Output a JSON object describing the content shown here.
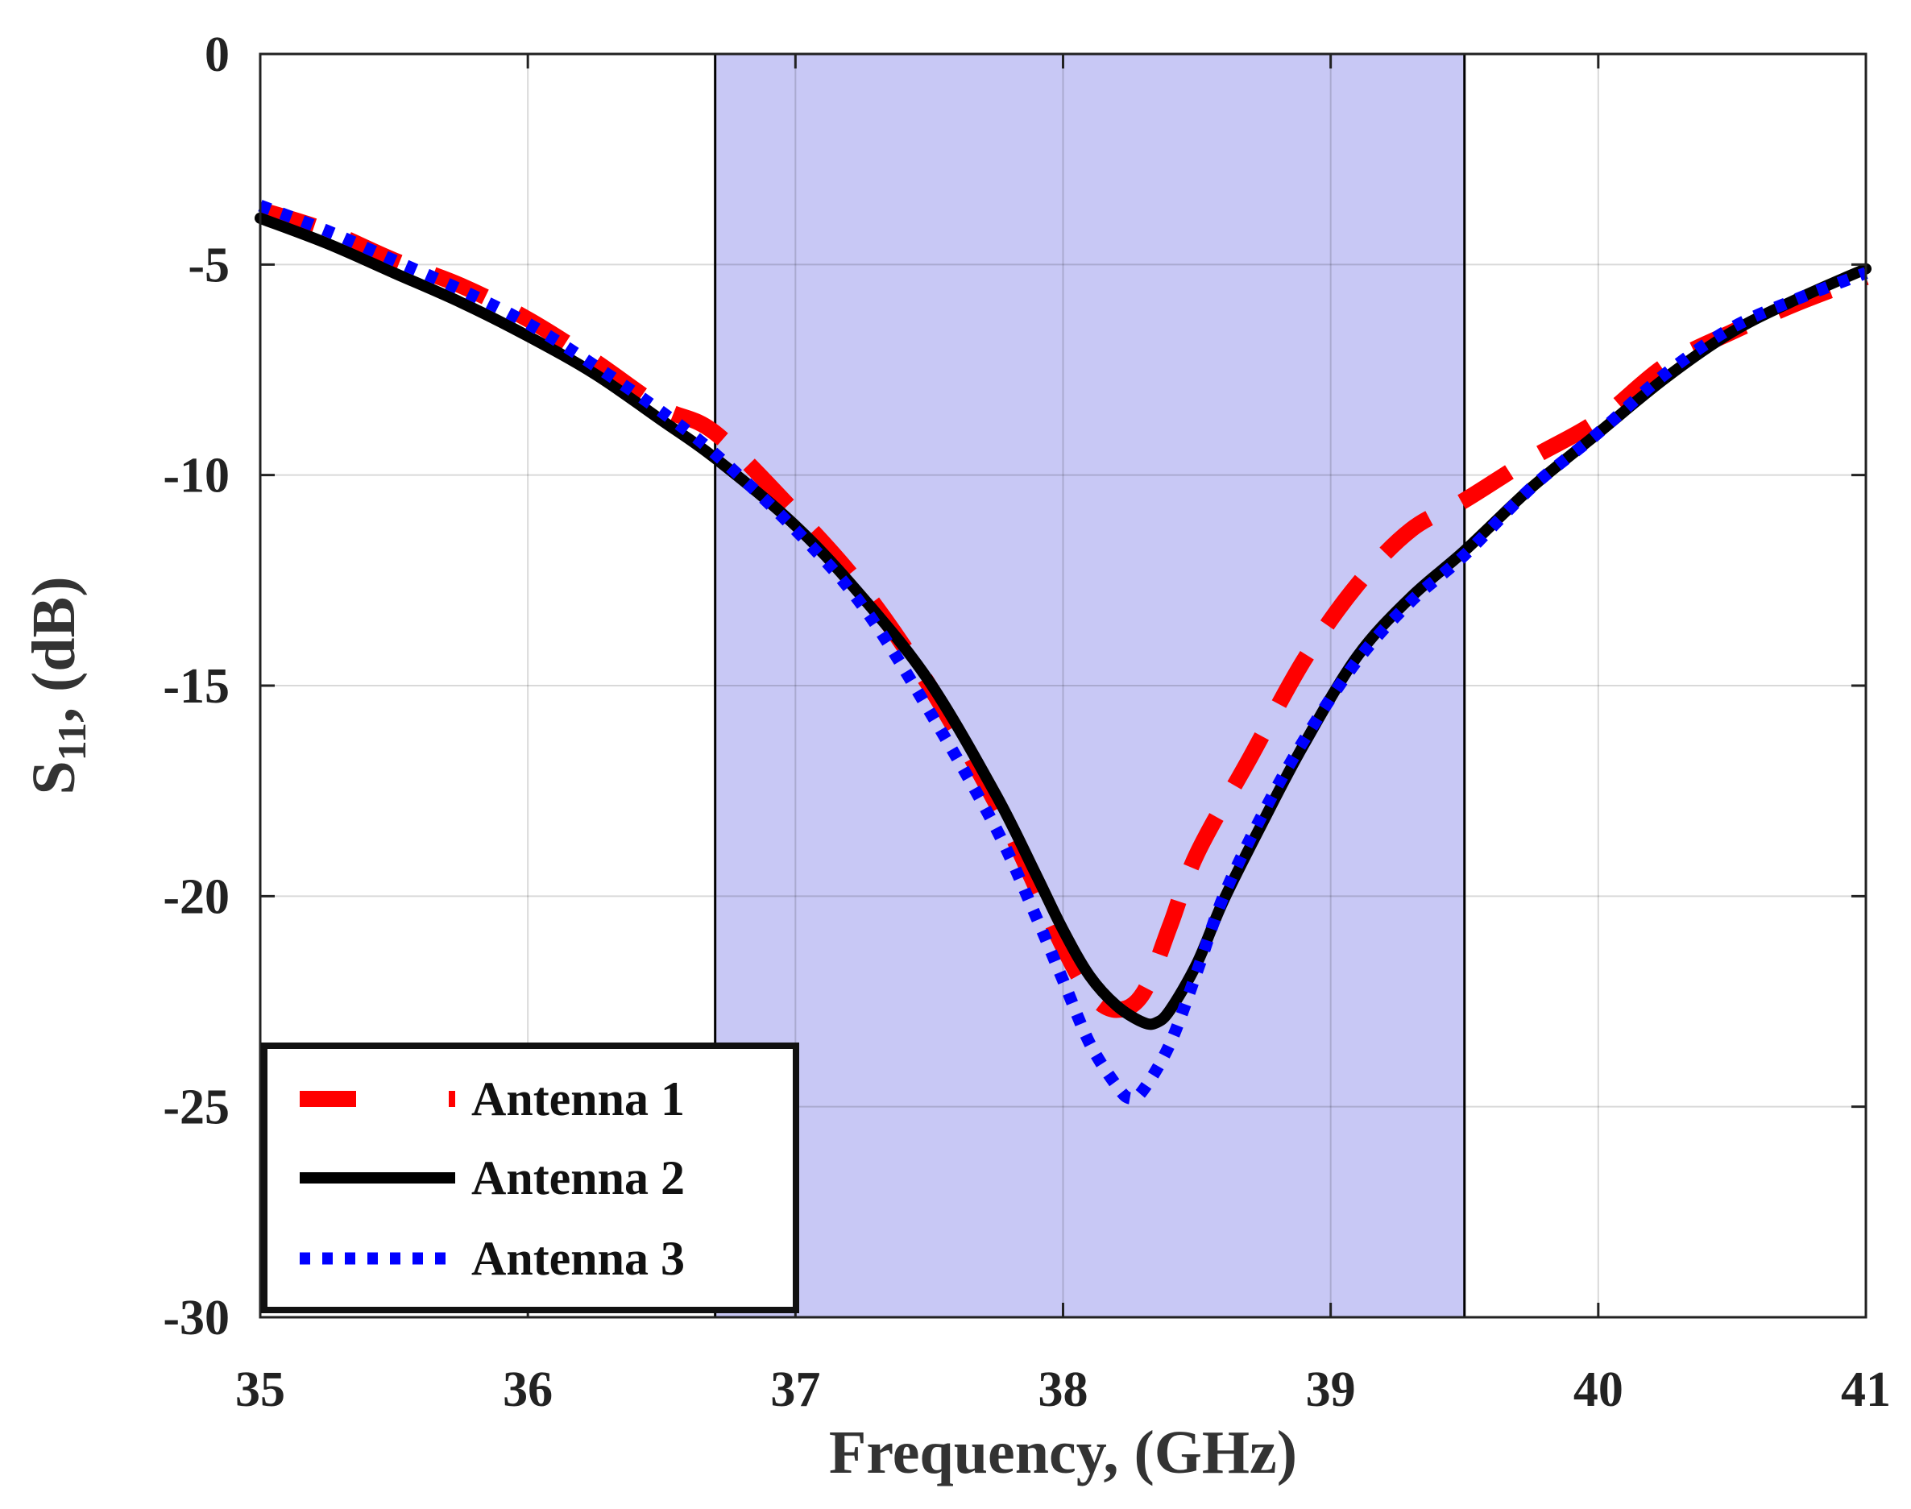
{
  "chart_data": {
    "type": "line",
    "title": "",
    "xlabel": "Frequency, (GHz)",
    "ylabel_main": "S",
    "ylabel_sub": "11",
    "ylabel_rest": ", (dB)",
    "xlim": [
      35,
      41
    ],
    "ylim": [
      -30,
      0
    ],
    "xticks": [
      35,
      36,
      37,
      38,
      39,
      40,
      41
    ],
    "yticks": [
      0,
      -5,
      -10,
      -15,
      -20,
      -25,
      -30
    ],
    "grid": true,
    "highlight_band": {
      "x0": 36.7,
      "x1": 39.5,
      "color": "#c8c8f5"
    },
    "legend": {
      "placement": "bottom-left"
    },
    "series": [
      {
        "name": "Antenna 1",
        "color": "#ff0000",
        "style": "dashed",
        "x": [
          35.0,
          35.25,
          35.5,
          35.75,
          36.0,
          36.25,
          36.5,
          36.7,
          37.0,
          37.25,
          37.5,
          37.75,
          37.9,
          38.0,
          38.1,
          38.2,
          38.3,
          38.4,
          38.5,
          38.7,
          38.9,
          39.1,
          39.3,
          39.5,
          39.75,
          40.0,
          40.25,
          40.5,
          40.75,
          41.0
        ],
        "y": [
          -3.7,
          -4.2,
          -4.9,
          -5.5,
          -6.3,
          -7.3,
          -8.4,
          -9.0,
          -10.9,
          -12.7,
          -15.0,
          -17.8,
          -19.8,
          -21.2,
          -22.3,
          -22.7,
          -22.3,
          -20.7,
          -19.0,
          -16.7,
          -14.4,
          -12.6,
          -11.3,
          -10.6,
          -9.6,
          -8.7,
          -7.4,
          -6.6,
          -5.9,
          -5.3
        ]
      },
      {
        "name": "Antenna 2",
        "color": "#000000",
        "style": "solid",
        "x": [
          35.0,
          35.25,
          35.5,
          35.75,
          36.0,
          36.25,
          36.5,
          36.7,
          37.0,
          37.25,
          37.5,
          37.75,
          37.9,
          38.0,
          38.1,
          38.2,
          38.3,
          38.35,
          38.4,
          38.5,
          38.6,
          38.75,
          38.9,
          39.1,
          39.3,
          39.5,
          39.75,
          40.0,
          40.25,
          40.5,
          40.75,
          41.0
        ],
        "y": [
          -3.9,
          -4.5,
          -5.2,
          -5.9,
          -6.7,
          -7.6,
          -8.7,
          -9.6,
          -11.2,
          -12.9,
          -14.9,
          -17.6,
          -19.5,
          -20.8,
          -21.9,
          -22.6,
          -23.0,
          -23.0,
          -22.7,
          -21.6,
          -20.1,
          -18.2,
          -16.4,
          -14.3,
          -12.9,
          -11.8,
          -10.3,
          -9.0,
          -7.7,
          -6.6,
          -5.8,
          -5.1
        ]
      },
      {
        "name": "Antenna 3",
        "color": "#0000ff",
        "style": "dotted",
        "x": [
          35.0,
          35.25,
          35.5,
          35.75,
          36.0,
          36.25,
          36.5,
          36.7,
          37.0,
          37.25,
          37.5,
          37.75,
          37.9,
          38.0,
          38.1,
          38.2,
          38.25,
          38.3,
          38.4,
          38.5,
          38.6,
          38.75,
          38.9,
          39.1,
          39.3,
          39.5,
          39.75,
          40.0,
          40.25,
          40.5,
          40.75,
          41.0
        ],
        "y": [
          -3.6,
          -4.2,
          -4.9,
          -5.6,
          -6.4,
          -7.4,
          -8.5,
          -9.5,
          -11.3,
          -13.1,
          -15.6,
          -18.4,
          -20.5,
          -22.0,
          -23.5,
          -24.5,
          -24.8,
          -24.6,
          -23.5,
          -21.8,
          -20.0,
          -18.0,
          -16.3,
          -14.4,
          -13.0,
          -11.9,
          -10.3,
          -9.0,
          -7.6,
          -6.5,
          -5.8,
          -5.2
        ]
      }
    ]
  }
}
